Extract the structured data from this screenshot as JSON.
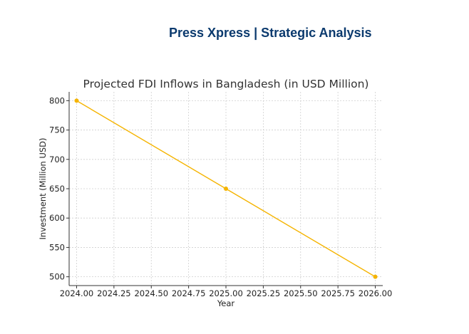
{
  "header": {
    "brand": "Press Xpress | Strategic Analysis"
  },
  "chart_data": {
    "type": "line",
    "title": "Projected FDI Inflows in Bangladesh (in USD Million)",
    "xlabel": "Year",
    "ylabel": "Investment (Million USD)",
    "x": [
      2024,
      2025,
      2026
    ],
    "series": [
      {
        "values": [
          800,
          650,
          500
        ]
      }
    ],
    "xlim": [
      2023.95,
      2026.05
    ],
    "ylim": [
      485,
      815
    ],
    "xticks": [
      2024.0,
      2024.25,
      2024.5,
      2024.75,
      2025.0,
      2025.25,
      2025.5,
      2025.75,
      2026.0
    ],
    "xtick_labels": [
      "2024.00",
      "2024.25",
      "2024.50",
      "2024.75",
      "2025.00",
      "2025.25",
      "2025.50",
      "2025.75",
      "2026.00"
    ],
    "yticks": [
      500,
      550,
      600,
      650,
      700,
      750,
      800
    ],
    "grid": true,
    "line_color": "#f5b400",
    "marker": "circle"
  }
}
